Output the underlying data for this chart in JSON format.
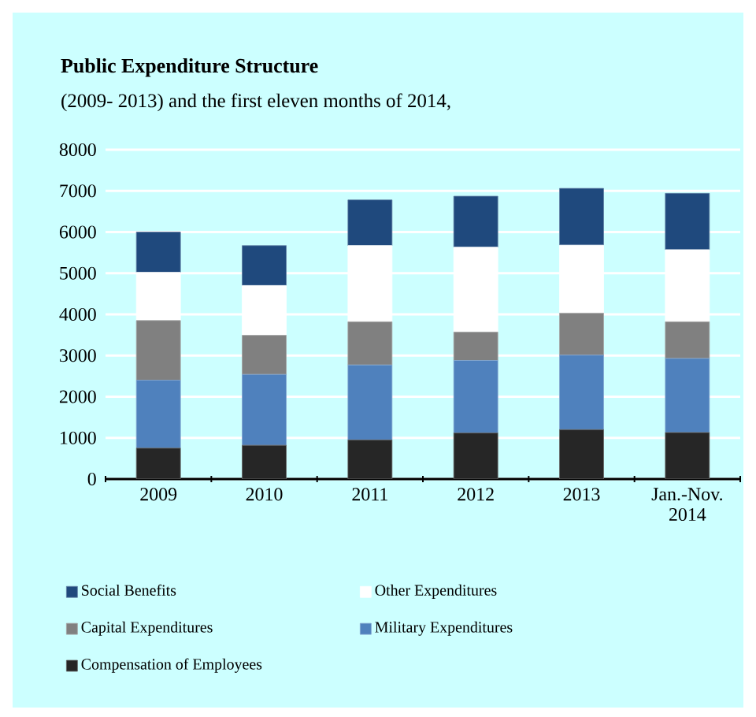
{
  "chart_data": {
    "type": "bar",
    "title": "Public Expenditure Structure",
    "subtitle": "(2009- 2013) and the first eleven months of 2014,",
    "categories": [
      "2009",
      "2010",
      "2011",
      "2012",
      "2013",
      "Jan.-Nov. 2014"
    ],
    "series": [
      {
        "name": "Compensation of Employees",
        "color": "#262626",
        "values": [
          750,
          820,
          950,
          1120,
          1200,
          1130
        ]
      },
      {
        "name": "Military Expenditures",
        "color": "#4f81bd",
        "values": [
          1650,
          1720,
          1820,
          1760,
          1810,
          1800
        ]
      },
      {
        "name": "Capital Expenditures",
        "color": "#808080",
        "values": [
          1450,
          950,
          1050,
          690,
          1020,
          890
        ]
      },
      {
        "name": "Other Expenditures",
        "color": "#ffffff",
        "values": [
          1170,
          1210,
          1850,
          2060,
          1650,
          1750
        ]
      },
      {
        "name": "Social Benefits",
        "color": "#1f497d",
        "values": [
          980,
          970,
          1110,
          1240,
          1380,
          1370
        ]
      }
    ],
    "stacked": true,
    "ylim": [
      0,
      8000
    ],
    "yticks": [
      0,
      1000,
      2000,
      3000,
      4000,
      5000,
      6000,
      7000,
      8000
    ],
    "grid": "y",
    "legend": "bottom"
  }
}
